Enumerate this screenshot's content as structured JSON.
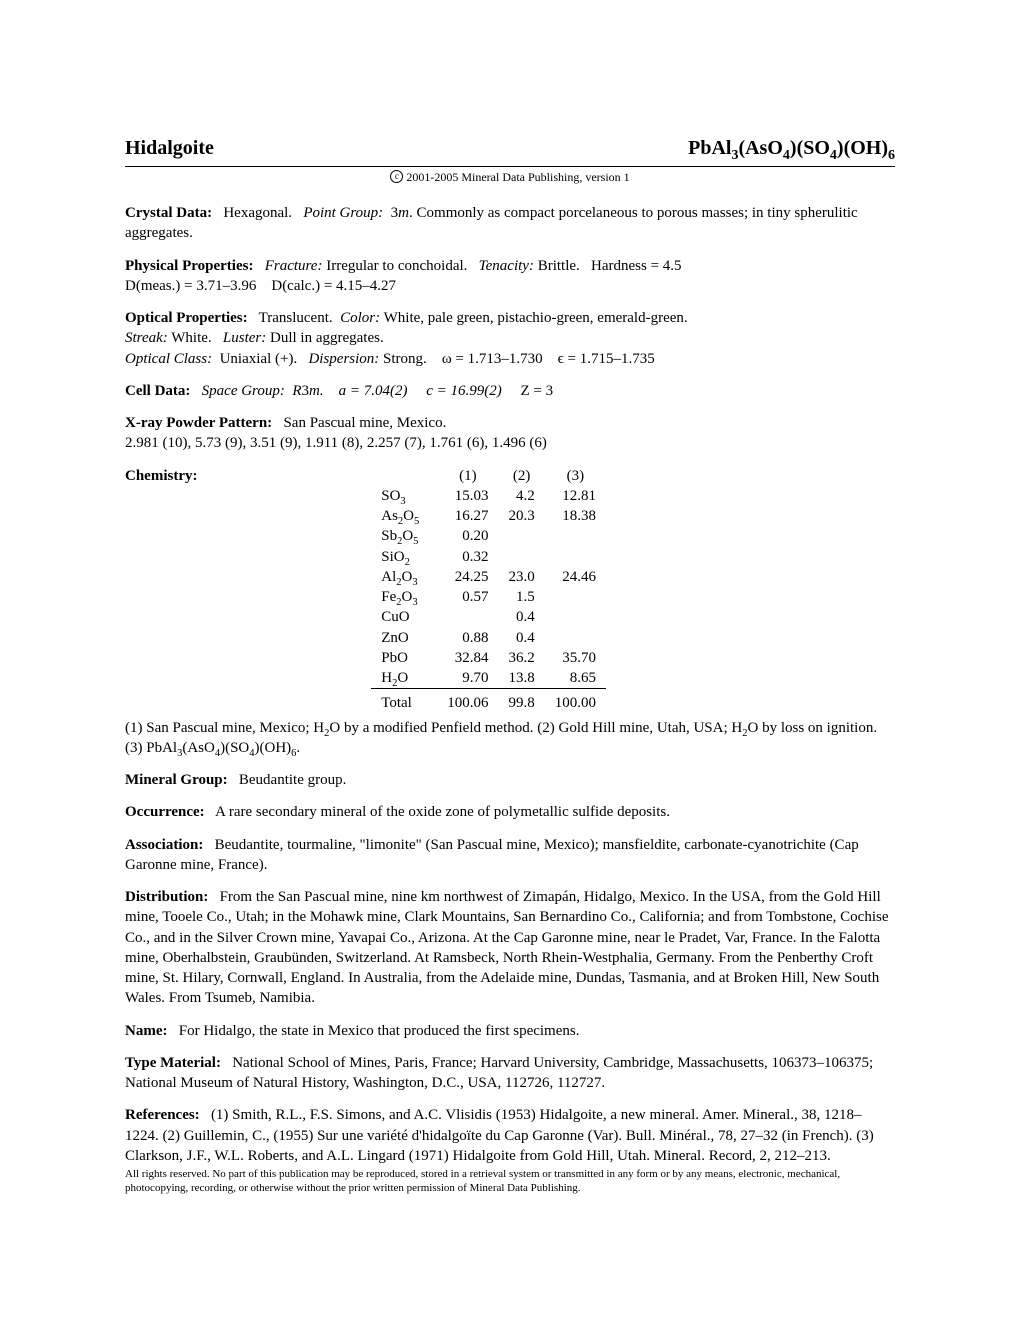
{
  "title": "Hidalgoite",
  "formula_parts": {
    "a": "PbAl",
    "a_sub": "3",
    "b": "(AsO",
    "b_sub": "4",
    "c": ")(SO",
    "c_sub": "4",
    "d": ")(OH)",
    "d_sub": "6"
  },
  "copyright": "2001-2005 Mineral Data Publishing, version 1",
  "crystal_data": {
    "label": "Crystal Data:",
    "system": "Hexagonal.",
    "point_group_label": "Point Group:",
    "point_group": "3",
    "point_group_italic": "m",
    "text": ".   Commonly as compact porcelaneous to porous masses; in tiny spherulitic aggregates."
  },
  "physical": {
    "label": "Physical Properties:",
    "fracture_label": "Fracture:",
    "fracture": "Irregular to conchoidal.",
    "tenacity_label": "Tenacity:",
    "tenacity": "Brittle.",
    "hardness": "Hardness = 4.5",
    "dmeas": "D(meas.) = 3.71–3.96",
    "dcalc": "D(calc.) = 4.15–4.27"
  },
  "optical": {
    "label": "Optical Properties:",
    "translucent": "Translucent.",
    "color_label": "Color:",
    "color": "White, pale green, pistachio-green, emerald-green.",
    "streak_label": "Streak:",
    "streak": "White.",
    "luster_label": "Luster:",
    "luster": "Dull in aggregates.",
    "class_label": "Optical Class:",
    "class": "Uniaxial (+).",
    "disp_label": "Dispersion:",
    "disp": "Strong.",
    "omega": "ω = 1.713–1.730",
    "eps": "ϵ = 1.715–1.735"
  },
  "cell": {
    "label": "Cell Data:",
    "sg_label": "Space Group:",
    "sg": "R",
    "sg2": "3",
    "sg3": "m.",
    "a": "a = 7.04(2)",
    "c": "c = 16.99(2)",
    "z": "Z = 3"
  },
  "xray": {
    "label": "X-ray Powder Pattern:",
    "locality": "San Pascual mine, Mexico.",
    "pattern": "2.981 (10), 5.73 (9), 3.51 (9), 1.911 (8), 2.257 (7), 1.761 (6), 1.496 (6)"
  },
  "chemistry": {
    "label": "Chemistry:",
    "headers": [
      "(1)",
      "(2)",
      "(3)"
    ],
    "rows": [
      {
        "compound_pre": "SO",
        "sub": "3",
        "post": "",
        "v": [
          "15.03",
          "4.2",
          "12.81"
        ]
      },
      {
        "compound_pre": "As",
        "sub": "2",
        "post": "O",
        "sub2": "5",
        "v": [
          "16.27",
          "20.3",
          "18.38"
        ]
      },
      {
        "compound_pre": "Sb",
        "sub": "2",
        "post": "O",
        "sub2": "5",
        "v": [
          "0.20",
          "",
          ""
        ]
      },
      {
        "compound_pre": "SiO",
        "sub": "2",
        "post": "",
        "v": [
          "0.32",
          "",
          ""
        ]
      },
      {
        "compound_pre": "Al",
        "sub": "2",
        "post": "O",
        "sub2": "3",
        "v": [
          "24.25",
          "23.0",
          "24.46"
        ]
      },
      {
        "compound_pre": "Fe",
        "sub": "2",
        "post": "O",
        "sub2": "3",
        "v": [
          "0.57",
          "1.5",
          ""
        ]
      },
      {
        "compound_pre": "CuO",
        "sub": "",
        "post": "",
        "v": [
          "",
          "0.4",
          ""
        ]
      },
      {
        "compound_pre": "ZnO",
        "sub": "",
        "post": "",
        "v": [
          "0.88",
          "0.4",
          ""
        ]
      },
      {
        "compound_pre": "PbO",
        "sub": "",
        "post": "",
        "v": [
          "32.84",
          "36.2",
          "35.70"
        ]
      },
      {
        "compound_pre": "H",
        "sub": "2",
        "post": "O",
        "v": [
          "9.70",
          "13.8",
          "8.65"
        ]
      }
    ],
    "total_label": "Total",
    "totals": [
      "100.06",
      "99.8",
      "100.00"
    ],
    "note1": "(1) San Pascual mine, Mexico; H",
    "note1b": "O by a modified Penfield method. (2) Gold Hill mine, Utah, USA; H",
    "note1c": "O by loss on ignition. (3) PbAl",
    "note1d": "(AsO",
    "note1e": ")(SO",
    "note1f": ")(OH)",
    "note1g": "."
  },
  "mineral_group": {
    "label": "Mineral Group:",
    "text": "Beudantite group."
  },
  "occurrence": {
    "label": "Occurrence:",
    "text": "A rare secondary mineral of the oxide zone of polymetallic sulfide deposits."
  },
  "association": {
    "label": "Association:",
    "text": "Beudantite, tourmaline, \"limonite\" (San Pascual mine, Mexico); mansfieldite, carbonate-cyanotrichite (Cap Garonne mine, France)."
  },
  "distribution": {
    "label": "Distribution:",
    "text": "From the San Pascual mine, nine km northwest of Zimapán, Hidalgo, Mexico. In the USA, from the Gold Hill mine, Tooele Co., Utah; in the Mohawk mine, Clark Mountains, San Bernardino Co., California; and from Tombstone, Cochise Co., and in the Silver Crown mine, Yavapai Co., Arizona. At the Cap Garonne mine, near le Pradet, Var, France. In the Falotta mine, Oberhalbstein, Graubünden, Switzerland. At Ramsbeck, North Rhein-Westphalia, Germany. From the Penberthy Croft mine, St. Hilary, Cornwall, England. In Australia, from the Adelaide mine, Dundas, Tasmania, and at Broken Hill, New South Wales. From Tsumeb, Namibia."
  },
  "name": {
    "label": "Name:",
    "text": "For Hidalgo, the state in Mexico that produced the first specimens."
  },
  "type_material": {
    "label": "Type Material:",
    "text": "National School of Mines, Paris, France; Harvard University, Cambridge, Massachusetts, 106373–106375; National Museum of Natural History, Washington, D.C., USA, 112726, 112727."
  },
  "references": {
    "label": "References:",
    "text": "(1) Smith, R.L., F.S. Simons, and A.C. Vlisidis (1953) Hidalgoite, a new mineral. Amer. Mineral., 38, 1218–1224. (2) Guillemin, C., (1955) Sur une variété d'hidalgoïte du Cap Garonne (Var). Bull. Minéral., 78, 27–32 (in French). (3) Clarkson, J.F., W.L. Roberts, and A.L. Lingard (1971) Hidalgoite from Gold Hill, Utah. Mineral. Record, 2, 212–213."
  },
  "footer": "All rights reserved. No part of this publication may be reproduced, stored in a retrieval system or transmitted in any form or by any means, electronic, mechanical, photocopying, recording, or otherwise without the prior written permission of Mineral Data Publishing."
}
